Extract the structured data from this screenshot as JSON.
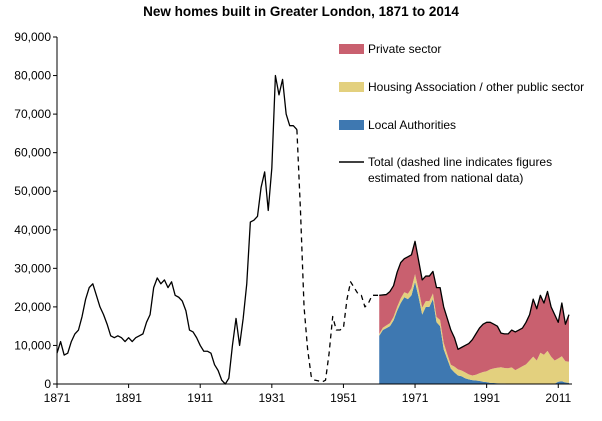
{
  "chart_data": {
    "type": "area",
    "title": "New homes built in Greater London, 1871 to 2014",
    "xlim": [
      1871,
      2014
    ],
    "ylim": [
      0,
      90000
    ],
    "x_ticks": [
      1871,
      1891,
      1911,
      1931,
      1951,
      1971,
      1991,
      2011
    ],
    "x_tick_labels": [
      "1871",
      "1891",
      "1911",
      "1931",
      "1951",
      "1971",
      "1991",
      "2011"
    ],
    "y_ticks": [
      0,
      10000,
      20000,
      30000,
      40000,
      50000,
      60000,
      70000,
      80000,
      90000
    ],
    "y_tick_labels": [
      "0",
      "10,000",
      "20,000",
      "30,000",
      "40,000",
      "50,000",
      "60,000",
      "70,000",
      "80,000",
      "90,000"
    ],
    "legend": {
      "placement": "top-right",
      "items": [
        {
          "label": "Private sector",
          "kind": "swatch",
          "color": "#c9606f"
        },
        {
          "label": "Housing Association / other public sector",
          "kind": "swatch",
          "color": "#e3d07e"
        },
        {
          "label": "Local Authorities",
          "kind": "swatch",
          "color": "#3e78b1"
        },
        {
          "label": "Total (dashed line indicates figures",
          "label2": "estimated from national data)",
          "kind": "line",
          "color": "#000000"
        }
      ]
    },
    "stack_x": [
      1961,
      1962,
      1963,
      1964,
      1965,
      1966,
      1967,
      1968,
      1969,
      1970,
      1971,
      1972,
      1973,
      1974,
      1975,
      1976,
      1977,
      1978,
      1979,
      1980,
      1981,
      1982,
      1983,
      1984,
      1985,
      1986,
      1987,
      1988,
      1989,
      1990,
      1991,
      1992,
      1993,
      1994,
      1995,
      1996,
      1997,
      1998,
      1999,
      2000,
      2001,
      2002,
      2003,
      2004,
      2005,
      2006,
      2007,
      2008,
      2009,
      2010,
      2011,
      2012,
      2013,
      2014
    ],
    "series": [
      {
        "name": "Local Authorities",
        "color": "#3e78b1",
        "values": [
          12500,
          14000,
          14500,
          15000,
          16500,
          19000,
          21000,
          22500,
          22000,
          23000,
          26500,
          22500,
          18000,
          20000,
          20000,
          22000,
          16000,
          15000,
          9000,
          6500,
          4000,
          3000,
          2200,
          2000,
          1500,
          1200,
          1000,
          900,
          800,
          600,
          500,
          300,
          250,
          200,
          150,
          150,
          100,
          100,
          100,
          100,
          100,
          100,
          100,
          100,
          100,
          100,
          100,
          100,
          100,
          100,
          600,
          700,
          400,
          300
        ]
      },
      {
        "name": "Housing Association / other public sector",
        "color": "#e3d07e",
        "values": [
          500,
          600,
          700,
          800,
          900,
          1000,
          1200,
          1300,
          1400,
          1800,
          2000,
          2000,
          1800,
          1500,
          1500,
          1500,
          1400,
          1600,
          1700,
          1200,
          1000,
          1500,
          1600,
          1500,
          1500,
          1300,
          1200,
          1500,
          2000,
          2500,
          2800,
          3500,
          3800,
          4000,
          4200,
          4000,
          4000,
          4200,
          3500,
          4000,
          4500,
          5000,
          6000,
          7000,
          6000,
          8000,
          7500,
          8500,
          7000,
          6000,
          6000,
          6500,
          5500,
          5500
        ]
      },
      {
        "name": "Private sector",
        "color": "#c9606f",
        "values": [
          10000,
          8500,
          8000,
          8200,
          8100,
          9000,
          9300,
          8700,
          9600,
          8700,
          8500,
          7500,
          7200,
          6500,
          6500,
          5700,
          7600,
          8400,
          9300,
          9300,
          9000,
          7500,
          5200,
          6000,
          7000,
          8000,
          9300,
          10600,
          11700,
          12400,
          12700,
          12200,
          11450,
          10800,
          8850,
          8850,
          8900,
          9700,
          9900,
          9900,
          9900,
          10900,
          11900,
          14900,
          13400,
          14900,
          13400,
          15400,
          12900,
          11900,
          9400,
          13800,
          9600,
          12200
        ]
      }
    ],
    "total_series": {
      "name": "Total",
      "solid_1": {
        "x": [
          1871,
          1872,
          1873,
          1874,
          1875,
          1876,
          1877,
          1878,
          1879,
          1880,
          1881,
          1882,
          1883,
          1884,
          1885,
          1886,
          1887,
          1888,
          1889,
          1890,
          1891,
          1892,
          1893,
          1894,
          1895,
          1896,
          1897,
          1898,
          1899,
          1900,
          1901,
          1902,
          1903,
          1904,
          1905,
          1906,
          1907,
          1908,
          1909,
          1910,
          1911,
          1912,
          1913,
          1914,
          1915,
          1916,
          1917,
          1918,
          1919,
          1920,
          1921,
          1922,
          1923,
          1924,
          1925,
          1926,
          1927,
          1928,
          1929,
          1930,
          1931,
          1932,
          1933,
          1934,
          1935,
          1936,
          1937,
          1938
        ],
        "y": [
          8000,
          11000,
          7500,
          8000,
          11000,
          13000,
          14000,
          17500,
          22000,
          25000,
          26000,
          23000,
          20000,
          18000,
          15500,
          12500,
          12000,
          12500,
          12000,
          11000,
          12000,
          11000,
          12000,
          12500,
          13000,
          16000,
          18000,
          25000,
          27500,
          26000,
          27000,
          25000,
          26500,
          23000,
          22500,
          21500,
          19000,
          14000,
          13500,
          12000,
          10000,
          8500,
          8500,
          8000,
          5000,
          3500,
          1000,
          0,
          1500,
          10000,
          17000,
          10000,
          17000,
          26000,
          42000,
          42500,
          43500,
          51000,
          55000,
          45000,
          56000,
          80000,
          75000,
          79000,
          70000,
          67000,
          67000,
          66000
        ]
      },
      "dashed": {
        "x": [
          1938,
          1939,
          1940,
          1941,
          1942,
          1943,
          1944,
          1945,
          1946,
          1947,
          1948,
          1949,
          1950,
          1951,
          1952,
          1953,
          1954,
          1955,
          1956,
          1957,
          1958,
          1959,
          1960,
          1961
        ],
        "y": [
          66000,
          45000,
          20000,
          9000,
          2000,
          1000,
          800,
          500,
          1000,
          8000,
          17500,
          14000,
          14000,
          14500,
          22000,
          26500,
          25000,
          23500,
          23000,
          20000,
          21000,
          23000,
          23000,
          23000
        ]
      },
      "solid_2": {
        "x": [
          1961,
          1962,
          1963,
          1964,
          1965,
          1966,
          1967,
          1968,
          1969,
          1970,
          1971,
          1972,
          1973,
          1974,
          1975,
          1976,
          1977,
          1978,
          1979,
          1980,
          1981,
          1982,
          1983,
          1984,
          1985,
          1986,
          1987,
          1988,
          1989,
          1990,
          1991,
          1992,
          1993,
          1994,
          1995,
          1996,
          1997,
          1998,
          1999,
          2000,
          2001,
          2002,
          2003,
          2004,
          2005,
          2006,
          2007,
          2008,
          2009,
          2010,
          2011,
          2012,
          2013,
          2014
        ],
        "y": [
          23000,
          23100,
          23200,
          24000,
          25500,
          29000,
          31500,
          32500,
          33000,
          33500,
          37000,
          32000,
          27000,
          28000,
          28000,
          29200,
          25000,
          25000,
          20000,
          17000,
          14000,
          12000,
          9000,
          9500,
          10000,
          10500,
          11500,
          13000,
          14500,
          15500,
          16000,
          16000,
          15500,
          15000,
          13200,
          13000,
          13000,
          14000,
          13500,
          14000,
          14500,
          16000,
          18000,
          22000,
          19500,
          23000,
          21000,
          24000,
          20000,
          18000,
          16000,
          21000,
          15500,
          18000
        ]
      }
    }
  }
}
